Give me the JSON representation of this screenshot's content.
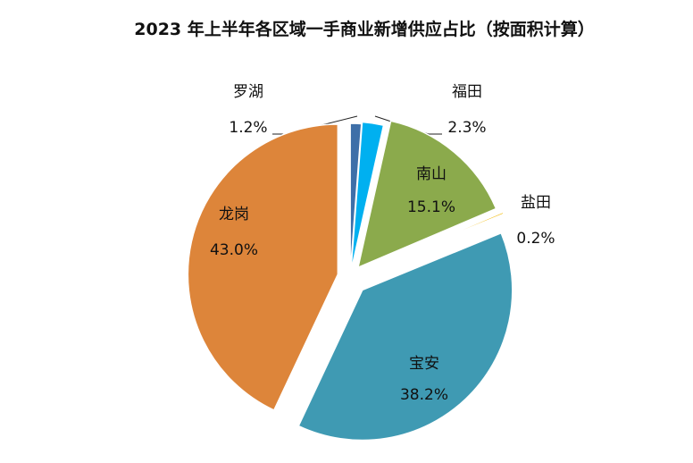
{
  "chart_data": {
    "type": "pie",
    "title": "2023 年上半年各区域一手商业新增供应占比（按面积计算）",
    "slices": [
      {
        "label": "罗湖",
        "value": 1.2,
        "display": "1.2%",
        "color": "#3E6FA8"
      },
      {
        "label": "福田",
        "value": 2.3,
        "display": "2.3%",
        "color": "#00B0F0"
      },
      {
        "label": "南山",
        "value": 15.1,
        "display": "15.1%",
        "color": "#8BAA4C"
      },
      {
        "label": "盐田",
        "value": 0.2,
        "display": "0.2%",
        "color": "#F2B800"
      },
      {
        "label": "宝安",
        "value": 38.2,
        "display": "38.2%",
        "color": "#3F9AB3"
      },
      {
        "label": "龙岗",
        "value": 43.0,
        "display": "43.0%",
        "color": "#DD853A"
      }
    ],
    "start": "12 o'clock",
    "direction": "clockwise",
    "exploded": true,
    "legend": "none"
  }
}
